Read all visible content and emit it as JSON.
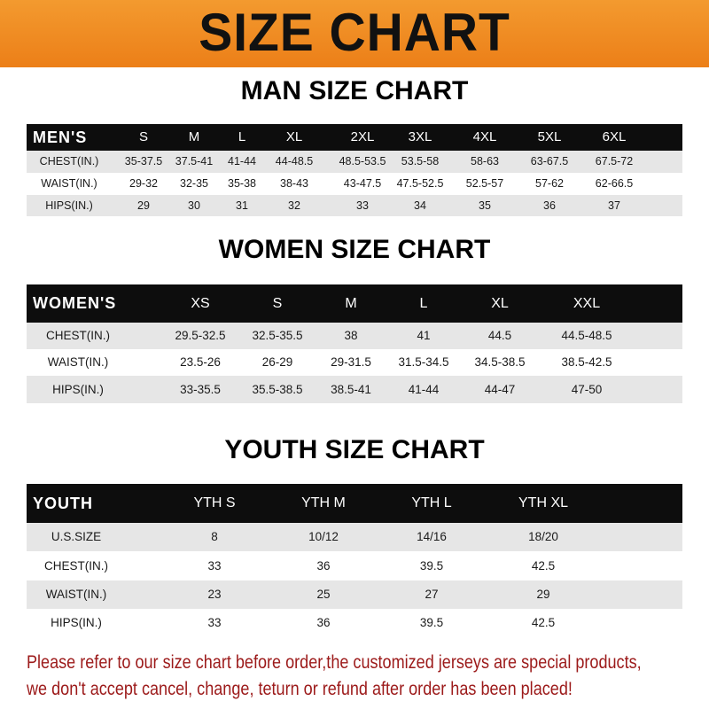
{
  "banner": {
    "title": "SIZE CHART",
    "background_color": "#ee861f"
  },
  "men": {
    "title": "MAN SIZE CHART",
    "header_label": "MEN'S",
    "sizes": [
      "S",
      "M",
      "L",
      "XL",
      "2XL",
      "3XL",
      "4XL",
      "5XL",
      "6XL"
    ],
    "rows": [
      {
        "label": "CHEST(IN.)",
        "values": [
          "35-37.5",
          "37.5-41",
          "41-44",
          "44-48.5",
          "48.5-53.5",
          "53.5-58",
          "58-63",
          "63-67.5",
          "67.5-72"
        ]
      },
      {
        "label": "WAIST(IN.)",
        "values": [
          "29-32",
          "32-35",
          "35-38",
          "38-43",
          "43-47.5",
          "47.5-52.5",
          "52.5-57",
          "57-62",
          "62-66.5"
        ]
      },
      {
        "label": "HIPS(IN.)",
        "values": [
          "29",
          "30",
          "31",
          "32",
          "33",
          "34",
          "35",
          "36",
          "37"
        ]
      }
    ]
  },
  "women": {
    "title": "WOMEN SIZE CHART",
    "header_label": "WOMEN'S",
    "sizes": [
      "XS",
      "S",
      "M",
      "L",
      "XL",
      "XXL"
    ],
    "rows": [
      {
        "label": "CHEST(IN.)",
        "values": [
          "29.5-32.5",
          "32.5-35.5",
          "38",
          "41",
          "44.5",
          "44.5-48.5"
        ]
      },
      {
        "label": "WAIST(IN.)",
        "values": [
          "23.5-26",
          "26-29",
          "29-31.5",
          "31.5-34.5",
          "34.5-38.5",
          "38.5-42.5"
        ]
      },
      {
        "label": "HIPS(IN.)",
        "values": [
          "33-35.5",
          "35.5-38.5",
          "38.5-41",
          "41-44",
          "44-47",
          "47-50"
        ]
      }
    ]
  },
  "youth": {
    "title": "YOUTH SIZE CHART",
    "header_label": "YOUTH",
    "sizes": [
      "YTH S",
      "YTH M",
      "YTH L",
      "YTH XL"
    ],
    "rows": [
      {
        "label": "U.S.SIZE",
        "values": [
          "8",
          "10/12",
          "14/16",
          "18/20"
        ]
      },
      {
        "label": "CHEST(IN.)",
        "values": [
          "33",
          "36",
          "39.5",
          "42.5"
        ]
      },
      {
        "label": "WAIST(IN.)",
        "values": [
          "23",
          "25",
          "27",
          "29"
        ]
      },
      {
        "label": "HIPS(IN.)",
        "values": [
          "33",
          "36",
          "39.5",
          "42.5"
        ]
      }
    ]
  },
  "notice": {
    "line1": "Please refer to our size chart before order,the customized jerseys are special products,",
    "line2": "we don't accept cancel, change, teturn or refund after order has been placed!",
    "color": "#9c1a1a"
  }
}
